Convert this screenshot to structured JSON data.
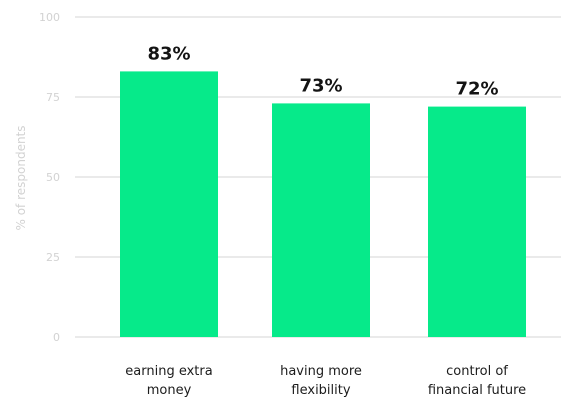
{
  "colors": {
    "bar": "#06ea8a",
    "grid": "#d6d6d6",
    "axis_text": "#d2d2d2",
    "label_text": "#141414"
  },
  "chart_data": {
    "type": "bar",
    "title": "",
    "ylabel": "% of respondents",
    "xlabel": "",
    "ylim": [
      0,
      100
    ],
    "yticks": [
      "0",
      "25",
      "50",
      "75",
      "100"
    ],
    "grid": true,
    "categories": [
      [
        "earning extra",
        "money"
      ],
      [
        "having more",
        "flexibility"
      ],
      [
        "control of",
        "financial future"
      ]
    ],
    "values": [
      83,
      73,
      72
    ],
    "data_labels": [
      "83%",
      "73%",
      "72%"
    ]
  }
}
